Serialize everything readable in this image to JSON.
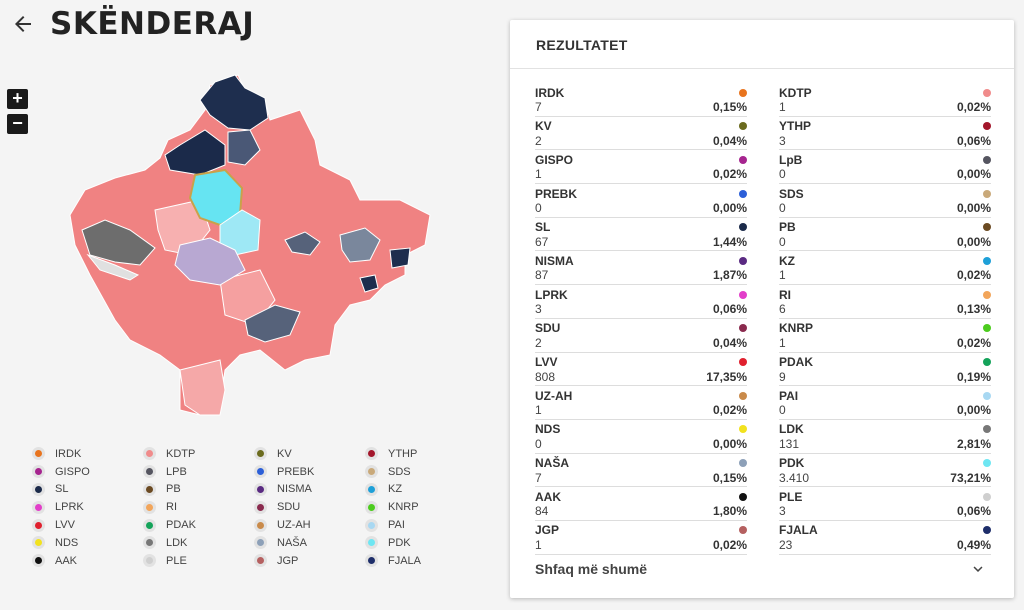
{
  "header": {
    "title": "SKËNDERAJ",
    "back_icon": "arrow-left-icon"
  },
  "map_controls": {
    "zoom_in": "+",
    "zoom_out": "−"
  },
  "legend": [
    {
      "label": "IRDK",
      "color": "#e8741e"
    },
    {
      "label": "KDTP",
      "color": "#f08b8b"
    },
    {
      "label": "KV",
      "color": "#6b6b1e"
    },
    {
      "label": "YTHP",
      "color": "#a3162b"
    },
    {
      "label": "GISPO",
      "color": "#a6248f"
    },
    {
      "label": "LPB",
      "color": "#555560"
    },
    {
      "label": "PREBK",
      "color": "#2c5fd8"
    },
    {
      "label": "SDS",
      "color": "#c9a97a"
    },
    {
      "label": "SL",
      "color": "#1b2a4a"
    },
    {
      "label": "PB",
      "color": "#6b4a22"
    },
    {
      "label": "NISMA",
      "color": "#5a2a82"
    },
    {
      "label": "KZ",
      "color": "#1ea0d8"
    },
    {
      "label": "LPRK",
      "color": "#e23ec9"
    },
    {
      "label": "RI",
      "color": "#f2a55a"
    },
    {
      "label": "SDU",
      "color": "#8a2a4e"
    },
    {
      "label": "KNRP",
      "color": "#4ccc1e"
    },
    {
      "label": "LVV",
      "color": "#e0202e"
    },
    {
      "label": "PDAK",
      "color": "#14a35a"
    },
    {
      "label": "UZ-AH",
      "color": "#c98a4a"
    },
    {
      "label": "PAI",
      "color": "#a8d8f2"
    },
    {
      "label": "NDS",
      "color": "#f2e21e"
    },
    {
      "label": "LDK",
      "color": "#777777"
    },
    {
      "label": "NAŠA",
      "color": "#8da0b8"
    },
    {
      "label": "PDK",
      "color": "#6ee6f2"
    },
    {
      "label": "AAK",
      "color": "#111111"
    },
    {
      "label": "PLE",
      "color": "#cfcfcf"
    },
    {
      "label": "JGP",
      "color": "#b56060"
    },
    {
      "label": "FJALA",
      "color": "#1e2e6a"
    }
  ],
  "panel": {
    "title": "REZULTATET",
    "results": [
      {
        "name": "IRDK",
        "votes": "7",
        "pct": "0,15%",
        "color": "#e8741e"
      },
      {
        "name": "KDTP",
        "votes": "1",
        "pct": "0,02%",
        "color": "#f08b8b"
      },
      {
        "name": "KV",
        "votes": "2",
        "pct": "0,04%",
        "color": "#6b6b1e"
      },
      {
        "name": "YTHP",
        "votes": "3",
        "pct": "0,06%",
        "color": "#a3162b"
      },
      {
        "name": "GISPO",
        "votes": "1",
        "pct": "0,02%",
        "color": "#a6248f"
      },
      {
        "name": "LpB",
        "votes": "0",
        "pct": "0,00%",
        "color": "#555560"
      },
      {
        "name": "PREBK",
        "votes": "0",
        "pct": "0,00%",
        "color": "#2c5fd8"
      },
      {
        "name": "SDS",
        "votes": "0",
        "pct": "0,00%",
        "color": "#c9a97a"
      },
      {
        "name": "SL",
        "votes": "67",
        "pct": "1,44%",
        "color": "#1b2a4a"
      },
      {
        "name": "PB",
        "votes": "0",
        "pct": "0,00%",
        "color": "#6b4a22"
      },
      {
        "name": "NISMA",
        "votes": "87",
        "pct": "1,87%",
        "color": "#5a2a82"
      },
      {
        "name": "KZ",
        "votes": "1",
        "pct": "0,02%",
        "color": "#1ea0d8"
      },
      {
        "name": "LPRK",
        "votes": "3",
        "pct": "0,06%",
        "color": "#e23ec9"
      },
      {
        "name": "RI",
        "votes": "6",
        "pct": "0,13%",
        "color": "#f2a55a"
      },
      {
        "name": "SDU",
        "votes": "2",
        "pct": "0,04%",
        "color": "#8a2a4e"
      },
      {
        "name": "KNRP",
        "votes": "1",
        "pct": "0,02%",
        "color": "#4ccc1e"
      },
      {
        "name": "LVV",
        "votes": "808",
        "pct": "17,35%",
        "color": "#e0202e"
      },
      {
        "name": "PDAK",
        "votes": "9",
        "pct": "0,19%",
        "color": "#14a35a"
      },
      {
        "name": "UZ-AH",
        "votes": "1",
        "pct": "0,02%",
        "color": "#c98a4a"
      },
      {
        "name": "PAI",
        "votes": "0",
        "pct": "0,00%",
        "color": "#a8d8f2"
      },
      {
        "name": "NDS",
        "votes": "0",
        "pct": "0,00%",
        "color": "#f2e21e"
      },
      {
        "name": "LDK",
        "votes": "131",
        "pct": "2,81%",
        "color": "#777777"
      },
      {
        "name": "NAŠA",
        "votes": "7",
        "pct": "0,15%",
        "color": "#8da0b8"
      },
      {
        "name": "PDK",
        "votes": "3.410",
        "pct": "73,21%",
        "color": "#6ee6f2"
      },
      {
        "name": "AAK",
        "votes": "84",
        "pct": "1,80%",
        "color": "#111111"
      },
      {
        "name": "PLE",
        "votes": "3",
        "pct": "0,06%",
        "color": "#cfcfcf"
      },
      {
        "name": "JGP",
        "votes": "1",
        "pct": "0,02%",
        "color": "#b56060"
      },
      {
        "name": "FJALA",
        "votes": "23",
        "pct": "0,49%",
        "color": "#1e2e6a"
      }
    ],
    "show_more_label": "Shfaq më shumë",
    "show_more_icon": "chevron-down-icon"
  }
}
